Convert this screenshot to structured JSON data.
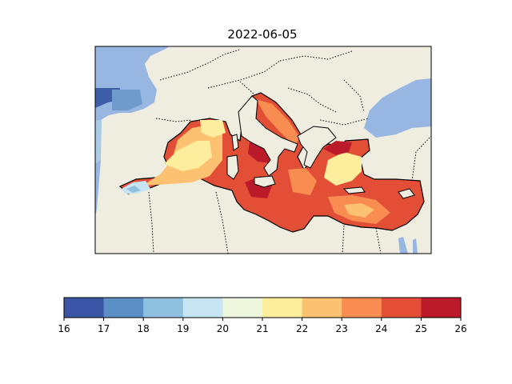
{
  "title": "2022-06-05",
  "colorbar": {
    "ticks": [
      "16",
      "17",
      "18",
      "19",
      "20",
      "21",
      "22",
      "23",
      "24",
      "25",
      "26"
    ],
    "colors": [
      "#3a55a5",
      "#5b8fc6",
      "#90c0df",
      "#c6e4f1",
      "#eef6dd",
      "#fdee9e",
      "#fdc271",
      "#f98c51",
      "#e24f36",
      "#bb1a2a"
    ]
  },
  "map_colors": {
    "land": "#efede0",
    "atlantic": "#97b6e1",
    "coast": "#000000",
    "border": "#000000"
  }
}
